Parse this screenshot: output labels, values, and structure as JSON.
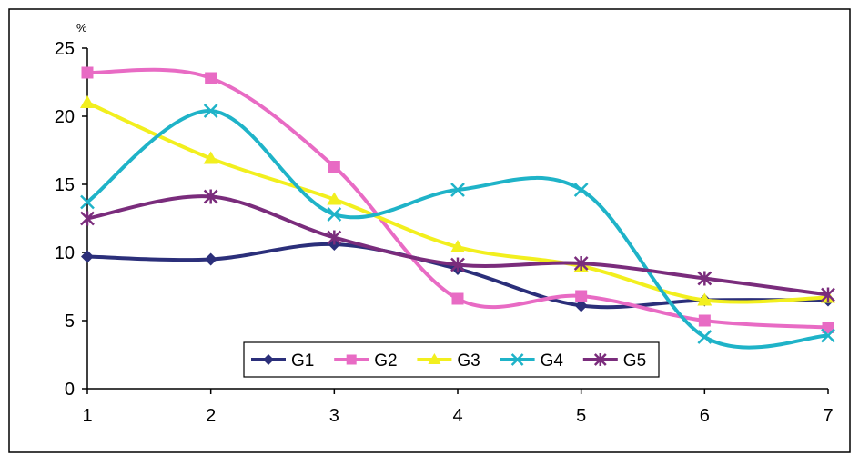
{
  "chart_data": {
    "type": "line",
    "unit_label": "%",
    "x": [
      1,
      2,
      3,
      4,
      5,
      6,
      7
    ],
    "x_tick_labels": [
      "1",
      "2",
      "3",
      "4",
      "5",
      "6",
      "7"
    ],
    "y_tick_labels": [
      "0",
      "5",
      "10",
      "15",
      "20",
      "25"
    ],
    "ylim": [
      0,
      25
    ],
    "grid": false,
    "smooth": true,
    "legend_position": "bottom-center inside plot",
    "series": [
      {
        "name": "G1",
        "color": "#2b2f7a",
        "marker": "diamond",
        "values": [
          9.7,
          9.5,
          10.6,
          8.8,
          6.1,
          6.5,
          6.5
        ]
      },
      {
        "name": "G2",
        "color": "#e86bc4",
        "marker": "square",
        "values": [
          23.2,
          22.8,
          16.3,
          6.6,
          6.8,
          5.0,
          4.5
        ]
      },
      {
        "name": "G3",
        "color": "#f2ef1e",
        "marker": "triangle",
        "values": [
          21.0,
          16.9,
          13.9,
          10.4,
          9.0,
          6.5,
          6.7
        ]
      },
      {
        "name": "G4",
        "color": "#1fb3c8",
        "marker": "x",
        "values": [
          13.7,
          20.4,
          12.8,
          14.6,
          14.6,
          3.8,
          3.9
        ]
      },
      {
        "name": "G5",
        "color": "#7a2c7c",
        "marker": "star",
        "values": [
          12.5,
          14.1,
          11.1,
          9.1,
          9.2,
          8.1,
          6.9
        ]
      }
    ]
  }
}
